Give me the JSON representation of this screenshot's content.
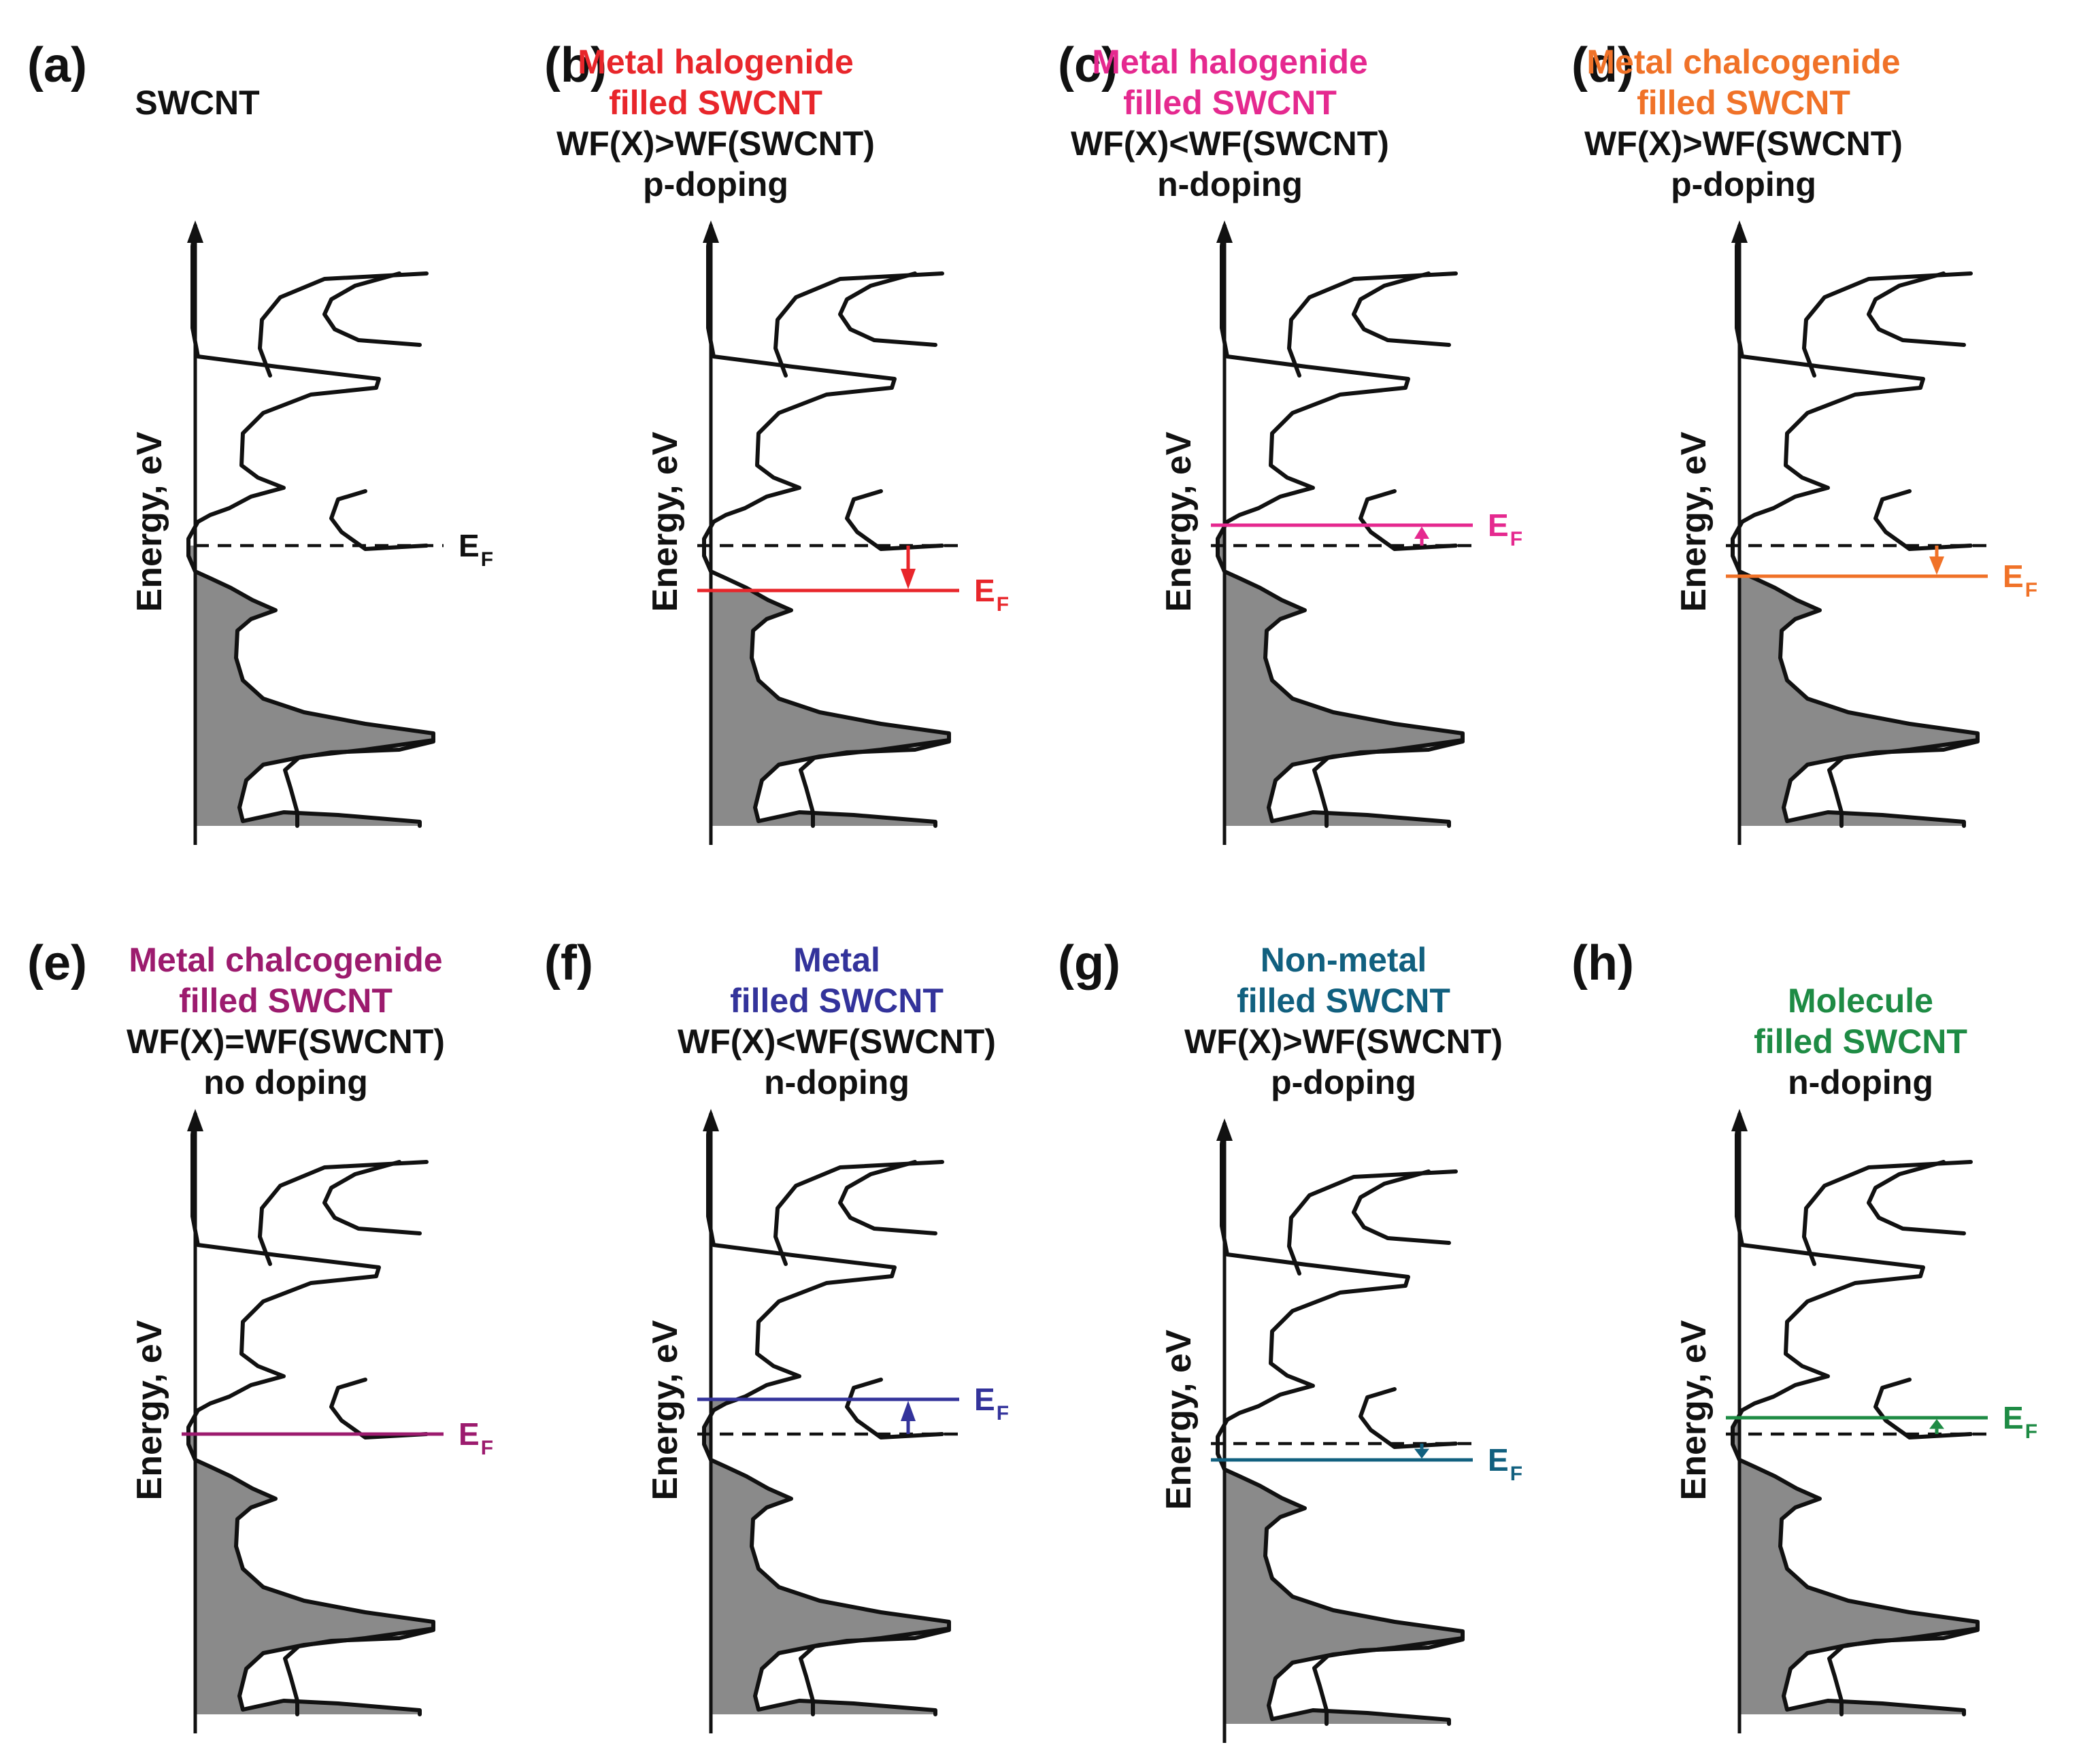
{
  "axis_label": "Energy, eV",
  "fermi_main": "E",
  "fermi_sub": "F",
  "colors": {
    "black": "#111111",
    "fill": "#8a8a8a",
    "red": "#e8262b",
    "pink": "#e5298f",
    "orange": "#f07228",
    "purple": "#9c1b6e",
    "blue": "#33339b",
    "teal": "#11607f",
    "green": "#1e8b44"
  },
  "panels": [
    {
      "label": "(a)",
      "color_key": "black",
      "title": [
        "",
        "SWCNT",
        "",
        ""
      ],
      "shift": 0,
      "show_dashed": false
    },
    {
      "label": "(b)",
      "color_key": "red",
      "title": [
        "Metal halogenide",
        "filled SWCNT",
        "WF(X)>WF(SWCNT)",
        "p-doping"
      ],
      "shift": -0.22,
      "show_dashed": true
    },
    {
      "label": "(c)",
      "color_key": "pink",
      "title": [
        "Metal halogenide",
        "filled SWCNT",
        "WF(X)<WF(SWCNT)",
        "n-doping"
      ],
      "shift": 0.1,
      "show_dashed": true
    },
    {
      "label": "(d)",
      "color_key": "orange",
      "title": [
        "Metal chalcogenide",
        "filled SWCNT",
        "WF(X)>WF(SWCNT)",
        "p-doping"
      ],
      "shift": -0.15,
      "show_dashed": true
    },
    {
      "label": "(e)",
      "color_key": "purple",
      "title": [
        "Metal chalcogenide",
        "filled SWCNT",
        "WF(X)=WF(SWCNT)",
        "no doping"
      ],
      "shift": 0,
      "show_dashed": false
    },
    {
      "label": "(f)",
      "color_key": "blue",
      "title": [
        "Metal",
        "filled SWCNT",
        "WF(X)<WF(SWCNT)",
        "n-doping"
      ],
      "shift": 0.17,
      "show_dashed": true
    },
    {
      "label": "(g)",
      "color_key": "teal",
      "title": [
        "Non-metal",
        "filled SWCNT",
        "WF(X)>WF(SWCNT)",
        "p-doping"
      ],
      "shift": -0.08,
      "show_dashed": true
    },
    {
      "label": "(h)",
      "color_key": "green",
      "title": [
        "",
        "Molecule",
        "filled SWCNT",
        "n-doping"
      ],
      "shift": 0.08,
      "show_dashed": true
    }
  ]
}
